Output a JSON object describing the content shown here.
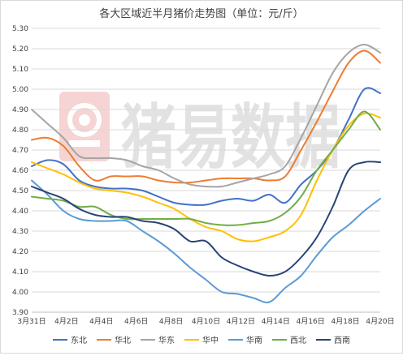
{
  "chart_data": {
    "type": "line",
    "title": "各大区域近半月猪价走势图（单位：元/斤）",
    "xlabel": "",
    "ylabel": "",
    "ylim": [
      3.9,
      5.3
    ],
    "y_ticks": [
      "3.90",
      "4.00",
      "4.10",
      "4.20",
      "4.30",
      "4.40",
      "4.50",
      "4.60",
      "4.70",
      "4.80",
      "4.90",
      "5.00",
      "5.10",
      "5.20",
      "5.30"
    ],
    "x_tick_labels": [
      "3月31日",
      "4月2日",
      "4月4日",
      "4月6日",
      "4月8日",
      "4月10日",
      "4月12日",
      "4月14日",
      "4月16日",
      "4月18日",
      "4月20日"
    ],
    "grid": "horizontal",
    "legend_position": "bottom",
    "watermark": "猪易数据",
    "series": [
      {
        "name": "东北",
        "color": "#4472c4",
        "values": [
          4.62,
          4.65,
          4.63,
          4.55,
          4.52,
          4.51,
          4.51,
          4.5,
          4.47,
          4.44,
          4.43,
          4.43,
          4.45,
          4.46,
          4.45,
          4.48,
          4.44,
          4.53,
          4.6,
          4.7,
          4.85,
          5.0,
          4.98
        ]
      },
      {
        "name": "华北",
        "color": "#ed7d31",
        "values": [
          4.75,
          4.76,
          4.72,
          4.62,
          4.55,
          4.57,
          4.57,
          4.57,
          4.55,
          4.54,
          4.54,
          4.55,
          4.56,
          4.56,
          4.56,
          4.55,
          4.57,
          4.7,
          4.84,
          4.99,
          5.13,
          5.19,
          5.13
        ]
      },
      {
        "name": "华东",
        "color": "#a5a5a5",
        "values": [
          4.9,
          4.83,
          4.76,
          4.67,
          4.66,
          4.66,
          4.65,
          4.62,
          4.6,
          4.56,
          4.53,
          4.52,
          4.52,
          4.54,
          4.56,
          4.58,
          4.62,
          4.76,
          4.92,
          5.08,
          5.18,
          5.22,
          5.18
        ]
      },
      {
        "name": "华中",
        "color": "#ffc000",
        "values": [
          4.64,
          4.61,
          4.58,
          4.54,
          4.51,
          4.5,
          4.49,
          4.47,
          4.44,
          4.41,
          4.36,
          4.32,
          4.3,
          4.26,
          4.25,
          4.27,
          4.3,
          4.38,
          4.55,
          4.7,
          4.82,
          4.88,
          4.86
        ]
      },
      {
        "name": "华南",
        "color": "#5b9bd5",
        "values": [
          4.55,
          4.48,
          4.4,
          4.36,
          4.35,
          4.35,
          4.35,
          4.3,
          4.25,
          4.19,
          4.12,
          4.06,
          4.0,
          3.99,
          3.97,
          3.95,
          4.02,
          4.08,
          4.18,
          4.27,
          4.33,
          4.4,
          4.46
        ]
      },
      {
        "name": "西北",
        "color": "#70ad47",
        "values": [
          4.47,
          4.46,
          4.45,
          4.42,
          4.42,
          4.38,
          4.36,
          4.36,
          4.36,
          4.36,
          4.36,
          4.34,
          4.33,
          4.33,
          4.34,
          4.35,
          4.39,
          4.47,
          4.6,
          4.7,
          4.8,
          4.89,
          4.8
        ]
      },
      {
        "name": "西南",
        "color": "#264478",
        "values": [
          4.52,
          4.49,
          4.46,
          4.41,
          4.38,
          4.37,
          4.37,
          4.35,
          4.34,
          4.31,
          4.25,
          4.25,
          4.17,
          4.13,
          4.1,
          4.08,
          4.1,
          4.17,
          4.27,
          4.42,
          4.6,
          4.64,
          4.64
        ]
      }
    ]
  }
}
